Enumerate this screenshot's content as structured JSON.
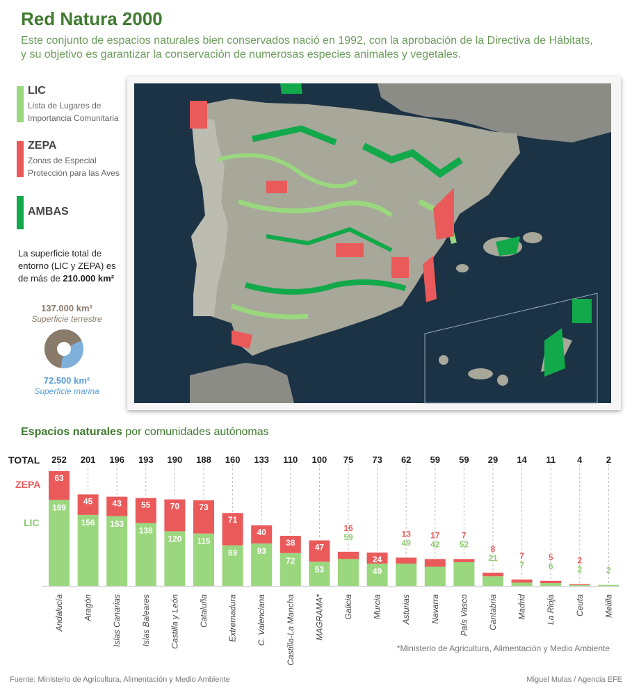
{
  "header": {
    "title": "Red Natura 2000",
    "subtitle_1": "Este conjunto de espacios naturales bien conservados nació en 1992, con la aprobación de la Directiva de Hábitats,",
    "subtitle_2": "y su objetivo es garantizar la conservación de numerosas especies animales y vegetales."
  },
  "legend": {
    "lic_title": "LIC",
    "lic_desc_1": "Lista de Lugares de",
    "lic_desc_2": "Importancia Comunitaria",
    "zepa_title": "ZEPA",
    "zepa_desc_1": "Zonas de Especial",
    "zepa_desc_2": "Protección para las Aves",
    "ambas_title": "AMBAS",
    "colors": {
      "lic": "#9ad77e",
      "zepa": "#ea5a5a",
      "ambas": "#12a94a"
    }
  },
  "surface": {
    "note_1": "La superficie total de",
    "note_2": "entorno (LIC y ZEPA) es",
    "note_3_prefix": "de más de ",
    "note_3_value": "210.000 km²",
    "terrestrial_value": "137.000 km²",
    "terrestrial_label": "Superficie terrestre",
    "marine_value": "72.500 km²",
    "marine_label": "Superficie marina",
    "colors": {
      "terrestrial": "#8a7a6a",
      "marine": "#7fb0dc"
    }
  },
  "section": {
    "title_bold": "Espacios naturales",
    "title_rest": " por comunidades autónomas"
  },
  "row_labels": {
    "total": "TOTAL",
    "zepa": "ZEPA",
    "lic": "LIC"
  },
  "chart_data": {
    "type": "bar",
    "stacked": true,
    "categories": [
      "Andalucía",
      "Aragón",
      "Islas Canarias",
      "Islas Baleares",
      "Castilla y León",
      "Cataluña",
      "Extremadura",
      "C. Valenciana",
      "Castilla-La Mancha",
      "MAGRAMA*",
      "Galicia",
      "Murcia",
      "Asturias",
      "Navarra",
      "País Vasco",
      "Cantabria",
      "Madrid",
      "La Rioja",
      "Ceuta",
      "Melilla"
    ],
    "totals": [
      252,
      201,
      196,
      193,
      190,
      188,
      160,
      133,
      110,
      100,
      75,
      73,
      62,
      59,
      59,
      29,
      14,
      11,
      4,
      2
    ],
    "series": [
      {
        "name": "LIC",
        "values": [
          189,
          156,
          153,
          138,
          120,
          115,
          89,
          93,
          72,
          53,
          59,
          49,
          49,
          42,
          52,
          21,
          7,
          6,
          2,
          2
        ],
        "color": "#9ad77e"
      },
      {
        "name": "ZEPA",
        "values": [
          63,
          45,
          43,
          55,
          70,
          73,
          71,
          40,
          38,
          47,
          16,
          24,
          13,
          17,
          7,
          8,
          7,
          5,
          2,
          0
        ],
        "color": "#ea5a5a"
      }
    ],
    "ylim": [
      0,
      252
    ]
  },
  "footnote": "*Ministerio de Agricultura, Alimentación y Medio Ambiente",
  "source": "Fuente: Ministerio de Agricultura, Alimentación y Medio Ambiente",
  "credit": "Miguel Mulas / Agencia EFE"
}
